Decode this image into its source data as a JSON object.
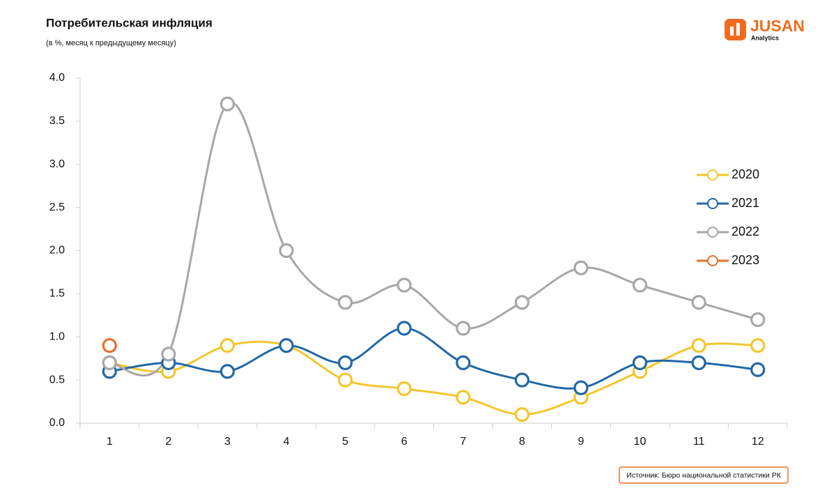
{
  "chart_data": {
    "type": "line",
    "title": "Потребительская инфляция",
    "subtitle": "(в %, месяц к предыдущему месяцу)",
    "source": "Источник: Бюро национальной статистики РК",
    "categories": [
      "1",
      "2",
      "3",
      "4",
      "5",
      "6",
      "7",
      "8",
      "9",
      "10",
      "11",
      "12"
    ],
    "series": [
      {
        "name": "2020",
        "color": "#f3c62c",
        "values": [
          0.7,
          0.6,
          0.9,
          0.9,
          0.5,
          0.4,
          0.3,
          0.1,
          0.3,
          0.6,
          0.9,
          0.9
        ]
      },
      {
        "name": "2021",
        "color": "#2168a8",
        "values": [
          0.6,
          0.7,
          0.6,
          0.9,
          0.7,
          1.1,
          0.7,
          0.5,
          0.41,
          0.7,
          0.7,
          0.62
        ]
      },
      {
        "name": "2022",
        "color": "#a7a7a7",
        "values": [
          0.7,
          0.8,
          3.7,
          2.0,
          1.4,
          1.6,
          1.1,
          1.4,
          1.8,
          1.6,
          1.4,
          1.2
        ]
      },
      {
        "name": "2023",
        "color": "#e8702a",
        "values": [
          0.9,
          null,
          null,
          null,
          null,
          null,
          null,
          null,
          null,
          null,
          null,
          null
        ]
      }
    ],
    "ylim": [
      0,
      4
    ],
    "yticks": [
      {
        "value": 0,
        "label": "0.0"
      },
      0.5,
      {
        "value": 1,
        "label": "1.0"
      },
      1.5,
      {
        "value": 2,
        "label": "2.0"
      },
      2.5,
      {
        "value": 3,
        "label": "3.0"
      },
      3.5,
      {
        "value": 4,
        "label": "4.0"
      }
    ],
    "smooth": true,
    "legend": "right"
  },
  "logo": {
    "name": "JUSAN",
    "sub": "Analytics"
  }
}
